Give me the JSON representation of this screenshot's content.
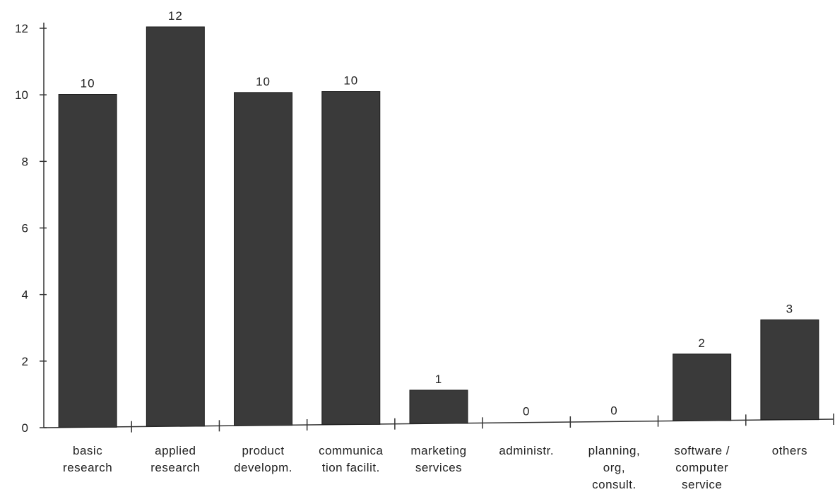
{
  "chart_data": {
    "type": "bar",
    "categories": [
      [
        "basic",
        "research"
      ],
      [
        "applied",
        "research"
      ],
      [
        "product",
        "developm."
      ],
      [
        "communica",
        "tion  facilit."
      ],
      [
        "marketing",
        "services"
      ],
      [
        "administr."
      ],
      [
        "planning,",
        "org,",
        "consult."
      ],
      [
        "software  /",
        "computer",
        "service"
      ],
      [
        "others"
      ]
    ],
    "values": [
      10,
      12,
      10,
      10,
      1,
      0,
      0,
      2,
      3
    ],
    "data_labels": [
      "10",
      "12",
      "10",
      "10",
      "1",
      "0",
      "0",
      "2",
      "3"
    ],
    "y_ticks": [
      "0",
      "2",
      "4",
      "6",
      "8",
      "10",
      "12"
    ],
    "ylim": [
      0,
      12
    ],
    "grid": false,
    "legend": "none",
    "bar_color": "#3a3a3a"
  }
}
